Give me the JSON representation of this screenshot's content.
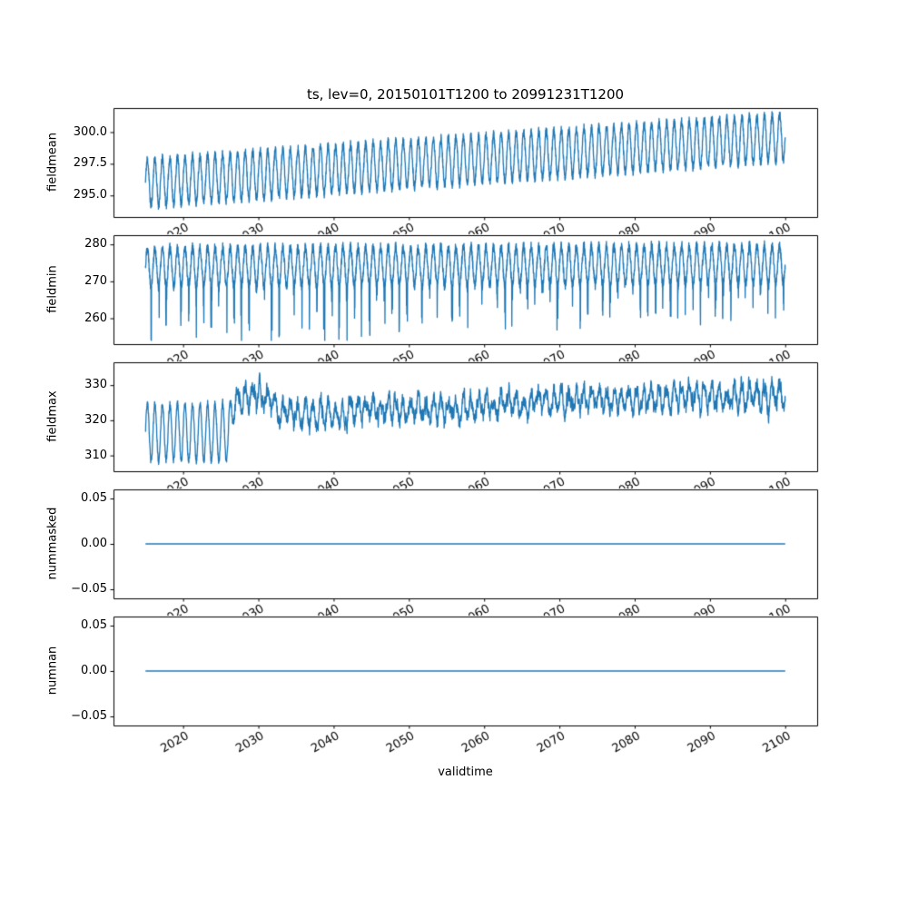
{
  "figure": {
    "title": "ts, lev=0, 20150101T1200 to 20991231T1200",
    "xlabel": "validtime",
    "background_color": "#ffffff",
    "line_color": "#1f77b4",
    "axis_color": "#000000",
    "xlim": [
      2010.75,
      2104.25
    ],
    "x_ticks": [
      2020,
      2030,
      2040,
      2050,
      2060,
      2070,
      2080,
      2090,
      2100
    ],
    "x_tick_labels": [
      "2020",
      "2030",
      "2040",
      "2050",
      "2060",
      "2070",
      "2080",
      "2090",
      "2100"
    ],
    "x_tick_rotation_deg": 30
  },
  "chart_data": [
    {
      "type": "line",
      "ylabel": "fieldmean",
      "x_range": [
        2015.0,
        2100.0
      ],
      "ylim": [
        293.3,
        301.9
      ],
      "yticks": [
        295.0,
        297.5,
        300.0
      ],
      "ytick_labels": [
        "295.0",
        "297.5",
        "300.0"
      ],
      "grid": false,
      "legend": null,
      "seasonal_period_years": 1,
      "approx_decadal_envelope": {
        "years": [
          2020,
          2030,
          2040,
          2050,
          2060,
          2070,
          2080,
          2090,
          2100
        ],
        "min": [
          294.2,
          294.8,
          295.2,
          295.6,
          296.0,
          296.4,
          296.8,
          297.2,
          297.6
        ],
        "max": [
          298.0,
          298.5,
          299.0,
          299.4,
          299.8,
          300.3,
          300.8,
          301.2,
          301.6
        ]
      },
      "synthesis": {
        "seed": 11,
        "t0": 2015.0,
        "t1": 2100.0,
        "dt": 0.02,
        "base": [
          [
            2015,
            296.0
          ],
          [
            2100,
            299.6
          ]
        ],
        "amp": 1.85,
        "noise": 0.35,
        "phase": 0
      }
    },
    {
      "type": "line",
      "ylabel": "fieldmin",
      "x_range": [
        2015.0,
        2100.0
      ],
      "ylim": [
        253.0,
        282.5
      ],
      "yticks": [
        260,
        270,
        280
      ],
      "ytick_labels": [
        "260",
        "270",
        "280"
      ],
      "grid": false,
      "legend": null,
      "seasonal_period_years": 1,
      "approx_decadal_envelope": {
        "years": [
          2020,
          2030,
          2040,
          2050,
          2060,
          2070,
          2080,
          2090,
          2100
        ],
        "min": [
          256,
          259,
          258,
          263,
          262,
          264,
          263,
          265,
          266
        ],
        "max": [
          280.5,
          280.5,
          281,
          281,
          281,
          281,
          281.5,
          281.5,
          281.5
        ]
      },
      "synthesis": {
        "seed": 22,
        "t0": 2015.0,
        "t1": 2100.0,
        "dt": 0.02,
        "base": [
          [
            2015,
            273.8
          ],
          [
            2100,
            274.5
          ]
        ],
        "amp": 5.2,
        "noise": 1.4,
        "phase": 0,
        "clip_min": 254.0,
        "spikes": {
          "threshold": -0.85,
          "prob": 0.28,
          "depth": [
            [
              2015,
              18
            ],
            [
              2100,
              9
            ]
          ]
        }
      }
    },
    {
      "type": "line",
      "ylabel": "fieldmax",
      "x_range": [
        2015.0,
        2100.0
      ],
      "ylim": [
        305.5,
        336.5
      ],
      "yticks": [
        310,
        320,
        330
      ],
      "ytick_labels": [
        "310",
        "320",
        "330"
      ],
      "grid": false,
      "legend": null,
      "seasonal_period_years": 1,
      "approx_decadal_envelope": {
        "years": [
          2020,
          2030,
          2040,
          2050,
          2060,
          2070,
          2080,
          2090,
          2100
        ],
        "min": [
          308,
          315,
          313,
          312,
          315,
          316,
          317,
          315,
          316
        ],
        "max": [
          325,
          333,
          330,
          334,
          333,
          334,
          335,
          335,
          335
        ]
      },
      "synthesis": {
        "seed": 33,
        "t0": 2015.0,
        "t1": 2100.0,
        "dt": 0.02,
        "base": [
          [
            2015,
            316.5
          ],
          [
            2026,
            316.5
          ],
          [
            2027,
            326.0
          ],
          [
            2030,
            327.5
          ],
          [
            2034,
            321.5
          ],
          [
            2040,
            322.0
          ],
          [
            2047,
            323.5
          ],
          [
            2055,
            323.0
          ],
          [
            2065,
            324.5
          ],
          [
            2075,
            326.0
          ],
          [
            2085,
            326.5
          ],
          [
            2100,
            327.0
          ]
        ],
        "amp": [
          [
            2015,
            8.2
          ],
          [
            2026,
            8.2
          ],
          [
            2027,
            3.0
          ],
          [
            2100,
            3.0
          ]
        ],
        "noise": 0.8,
        "phase": 0,
        "ar": {
          "rho": 0.78,
          "sigma": [
            [
              2015,
              0.3
            ],
            [
              2026,
              0.3
            ],
            [
              2027,
              1.5
            ],
            [
              2100,
              1.5
            ]
          ]
        }
      }
    },
    {
      "type": "line",
      "ylabel": "nummasked",
      "x_range": [
        2015.0,
        2100.0
      ],
      "ylim": [
        -0.06,
        0.06
      ],
      "yticks": [
        -0.05,
        0.0,
        0.05
      ],
      "ytick_labels": [
        "−0.05",
        "0.00",
        "0.05"
      ],
      "grid": false,
      "legend": null,
      "values_constant": 0.0,
      "approx_decadal_envelope": {
        "years": [
          2020,
          2030,
          2040,
          2050,
          2060,
          2070,
          2080,
          2090,
          2100
        ],
        "min": [
          0,
          0,
          0,
          0,
          0,
          0,
          0,
          0,
          0
        ],
        "max": [
          0,
          0,
          0,
          0,
          0,
          0,
          0,
          0,
          0
        ]
      },
      "synthesis": {
        "seed": 4,
        "t0": 2015.0,
        "t1": 2100.0,
        "dt": 1,
        "base": [
          [
            2015,
            0
          ],
          [
            2100,
            0
          ]
        ],
        "amp": 0,
        "noise": 0,
        "phase": 0
      }
    },
    {
      "type": "line",
      "ylabel": "numnan",
      "x_range": [
        2015.0,
        2100.0
      ],
      "ylim": [
        -0.06,
        0.06
      ],
      "yticks": [
        -0.05,
        0.0,
        0.05
      ],
      "ytick_labels": [
        "−0.05",
        "0.00",
        "0.05"
      ],
      "grid": false,
      "legend": null,
      "values_constant": 0.0,
      "approx_decadal_envelope": {
        "years": [
          2020,
          2030,
          2040,
          2050,
          2060,
          2070,
          2080,
          2090,
          2100
        ],
        "min": [
          0,
          0,
          0,
          0,
          0,
          0,
          0,
          0,
          0
        ],
        "max": [
          0,
          0,
          0,
          0,
          0,
          0,
          0,
          0,
          0
        ]
      },
      "synthesis": {
        "seed": 5,
        "t0": 2015.0,
        "t1": 2100.0,
        "dt": 1,
        "base": [
          [
            2015,
            0
          ],
          [
            2100,
            0
          ]
        ],
        "amp": 0,
        "noise": 0,
        "phase": 0
      }
    }
  ]
}
